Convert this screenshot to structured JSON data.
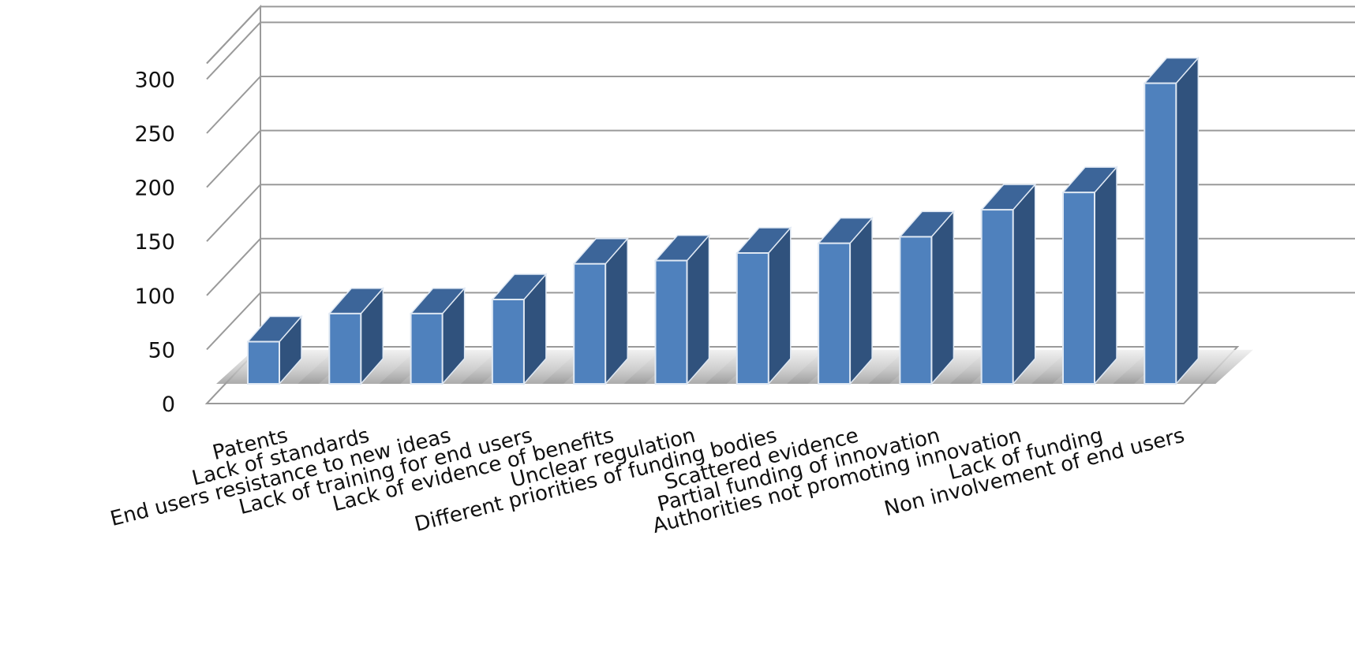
{
  "chart_data": {
    "type": "bar",
    "three_d": true,
    "title": "",
    "xlabel": "",
    "ylabel": "",
    "ylim": [
      0,
      300
    ],
    "yticks": [
      0,
      50,
      100,
      150,
      200,
      250,
      300
    ],
    "grid": true,
    "legend": "none",
    "categories": [
      "Patents",
      "Lack of standards",
      "End users resistance to new ideas",
      "Lack of training for end users",
      "Lack of evidence of benefits",
      "Unclear regulation",
      "Different priorities of funding bodies",
      "Scattered evidence",
      "Partial funding of innovation",
      "Authorities not promoting innovation",
      "Lack of funding",
      "Non involvement of end users"
    ],
    "values": [
      39,
      65,
      65,
      78,
      111,
      114,
      121,
      130,
      136,
      161,
      177,
      278
    ],
    "colors": {
      "bar_front": "#4f81bd",
      "bar_side": "#30527d",
      "bar_top": "#3c6599",
      "gridline": "#9a9a9a",
      "floor": "#bdbdbd"
    }
  }
}
